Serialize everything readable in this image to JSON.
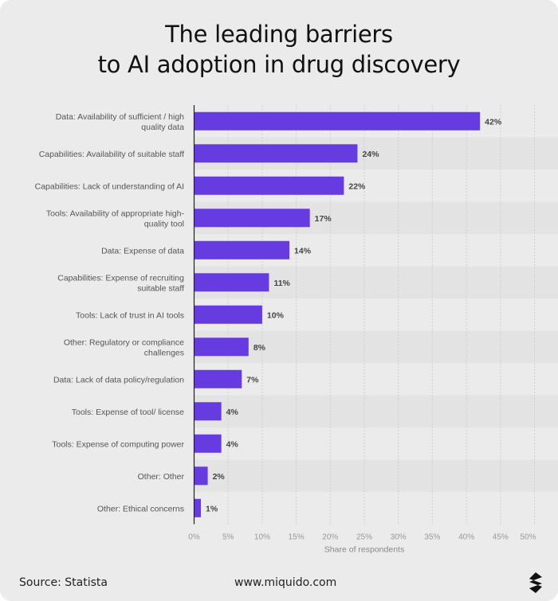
{
  "title_lines": [
    "The leading barriers",
    "to AI adoption in drug discovery"
  ],
  "footer": {
    "source": "Source: Statista",
    "website": "www.miquido.com",
    "logo": "miquido"
  },
  "colors": {
    "bar": "#663bdf",
    "background": "#ebebeb",
    "stripe": "#e3e3e3"
  },
  "chart_data": {
    "type": "bar",
    "orientation": "horizontal",
    "categories": [
      [
        "Data: Availability of sufficient / high",
        "quality data"
      ],
      [
        "Capabilities: Availability of suitable staff"
      ],
      [
        "Capabilities: Lack of understanding of AI"
      ],
      [
        "Tools: Availability of appropriate high-",
        "quality tool"
      ],
      [
        "Data: Expense of data"
      ],
      [
        "Capabilities: Expense of recruiting",
        "suitable staff"
      ],
      [
        "Tools: Lack of trust in AI tools"
      ],
      [
        "Other: Regulatory or compliance",
        "challenges"
      ],
      [
        "Data: Lack of data policy/regulation"
      ],
      [
        "Tools: Expense of tool/ license"
      ],
      [
        "Tools: Expense of computing power"
      ],
      [
        "Other: Other"
      ],
      [
        "Other: Ethical concerns"
      ]
    ],
    "values": [
      42,
      24,
      22,
      17,
      14,
      11,
      10,
      8,
      7,
      4,
      4,
      2,
      1
    ],
    "data_labels": [
      "42%",
      "24%",
      "22%",
      "17%",
      "14%",
      "11%",
      "10%",
      "8%",
      "7%",
      "4%",
      "4%",
      "2%",
      "1%"
    ],
    "xlabel": "Share of respondents",
    "xlim": [
      0,
      50
    ],
    "xticks": [
      "0%",
      "5%",
      "10%",
      "15%",
      "20%",
      "25%",
      "30%",
      "35%",
      "40%",
      "45%",
      "50%"
    ],
    "grid": true
  }
}
